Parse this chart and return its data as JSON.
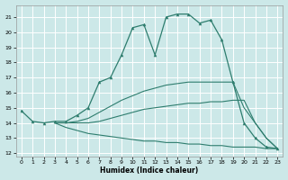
{
  "xlabel": "Humidex (Indice chaleur)",
  "ylabel": "",
  "bg_color": "#cce8e8",
  "line_color": "#2e7d6e",
  "grid_color": "#ffffff",
  "xlim": [
    -0.5,
    23.5
  ],
  "ylim": [
    11.8,
    21.8
  ],
  "yticks": [
    12,
    13,
    14,
    15,
    16,
    17,
    18,
    19,
    20,
    21
  ],
  "xticks": [
    0,
    1,
    2,
    3,
    4,
    5,
    6,
    7,
    8,
    9,
    10,
    11,
    12,
    13,
    14,
    15,
    16,
    17,
    18,
    19,
    20,
    21,
    22,
    23
  ],
  "curves": [
    {
      "x": [
        0,
        1,
        2,
        3,
        4,
        5,
        6,
        7,
        8,
        9,
        10,
        11,
        12,
        13,
        14,
        15,
        16,
        17,
        18,
        19,
        20,
        21,
        22,
        23
      ],
      "y": [
        14.8,
        14.1,
        14.0,
        14.1,
        14.1,
        14.5,
        15.0,
        16.7,
        17.0,
        18.5,
        20.3,
        20.5,
        18.5,
        21.0,
        21.2,
        21.2,
        20.6,
        20.8,
        19.5,
        16.7,
        14.0,
        13.0,
        12.4,
        12.3
      ],
      "marker": true
    },
    {
      "x": [
        3,
        4,
        5,
        6,
        7,
        8,
        9,
        10,
        11,
        12,
        13,
        14,
        15,
        16,
        17,
        18,
        19,
        20,
        21,
        22,
        23
      ],
      "y": [
        14.0,
        14.0,
        14.1,
        14.3,
        14.7,
        15.1,
        15.5,
        15.8,
        16.1,
        16.3,
        16.5,
        16.6,
        16.7,
        16.7,
        16.7,
        16.7,
        16.7,
        15.0,
        14.0,
        13.0,
        12.3
      ],
      "marker": false
    },
    {
      "x": [
        3,
        4,
        5,
        6,
        7,
        8,
        9,
        10,
        11,
        12,
        13,
        14,
        15,
        16,
        17,
        18,
        19,
        20,
        21,
        22,
        23
      ],
      "y": [
        14.0,
        14.0,
        14.0,
        14.0,
        14.1,
        14.3,
        14.5,
        14.7,
        14.9,
        15.0,
        15.1,
        15.2,
        15.3,
        15.3,
        15.4,
        15.4,
        15.5,
        15.5,
        14.0,
        13.0,
        12.3
      ],
      "marker": false
    },
    {
      "x": [
        3,
        4,
        5,
        6,
        7,
        8,
        9,
        10,
        11,
        12,
        13,
        14,
        15,
        16,
        17,
        18,
        19,
        20,
        21,
        22,
        23
      ],
      "y": [
        14.0,
        13.7,
        13.5,
        13.3,
        13.2,
        13.1,
        13.0,
        12.9,
        12.8,
        12.8,
        12.7,
        12.7,
        12.6,
        12.6,
        12.5,
        12.5,
        12.4,
        12.4,
        12.4,
        12.3,
        12.3
      ],
      "marker": false
    }
  ]
}
